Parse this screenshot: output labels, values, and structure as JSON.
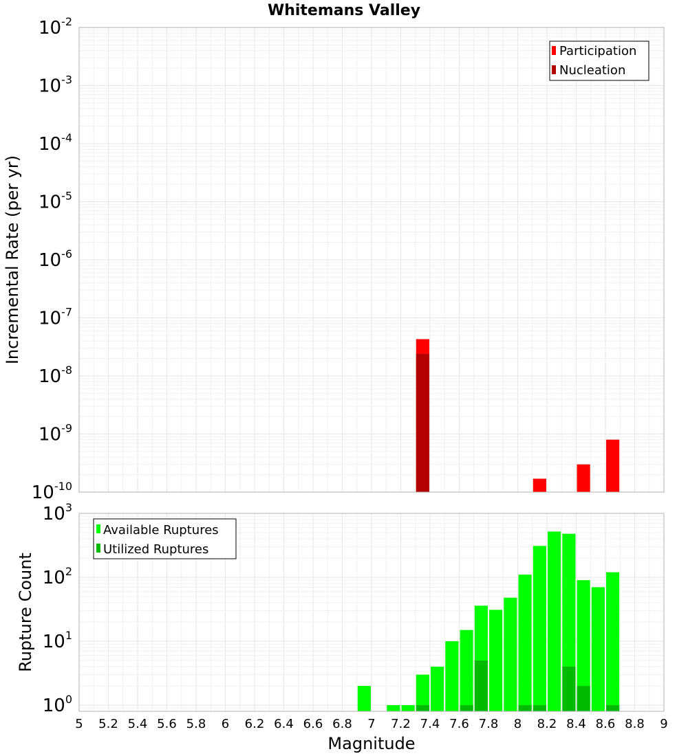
{
  "chart_data": [
    {
      "type": "bar",
      "title": "Whitemans Valley",
      "xlabel": "",
      "ylabel": "Incremental Rate (per yr)",
      "yscale": "log",
      "ylim": [
        1e-10,
        0.01
      ],
      "xlim": [
        5,
        9
      ],
      "grid": true,
      "legend_position": "top-right",
      "y_ticks": [
        {
          "base": "10",
          "exp": "-10"
        },
        {
          "base": "10",
          "exp": "-9"
        },
        {
          "base": "10",
          "exp": "-8"
        },
        {
          "base": "10",
          "exp": "-7"
        },
        {
          "base": "10",
          "exp": "-6"
        },
        {
          "base": "10",
          "exp": "-5"
        },
        {
          "base": "10",
          "exp": "-4"
        },
        {
          "base": "10",
          "exp": "-3"
        },
        {
          "base": "10",
          "exp": "-2"
        }
      ],
      "bar_width": 0.09,
      "series": [
        {
          "name": "Participation",
          "color": "#ff0000",
          "x": [
            7.35,
            8.15,
            8.45,
            8.65
          ],
          "values": [
            4.3e-08,
            1.7e-10,
            3e-10,
            8e-10
          ]
        },
        {
          "name": "Nucleation",
          "color": "#b30000",
          "x": [
            7.35
          ],
          "values": [
            2.4e-08
          ]
        }
      ]
    },
    {
      "type": "bar",
      "xlabel": "Magnitude",
      "ylabel": "Rupture Count",
      "yscale": "log",
      "ylim": [
        0.8,
        1000
      ],
      "xlim": [
        5,
        9
      ],
      "grid": true,
      "legend_position": "top-left",
      "x_ticks": [
        "5",
        "5.2",
        "5.4",
        "5.6",
        "5.8",
        "6",
        "6.2",
        "6.4",
        "6.6",
        "6.8",
        "7",
        "7.2",
        "7.4",
        "7.6",
        "7.8",
        "8",
        "8.2",
        "8.4",
        "8.6",
        "8.8",
        "9"
      ],
      "y_ticks": [
        {
          "base": "10",
          "exp": "0"
        },
        {
          "base": "10",
          "exp": "1"
        },
        {
          "base": "10",
          "exp": "2"
        },
        {
          "base": "10",
          "exp": "3"
        }
      ],
      "bar_width": 0.09,
      "series": [
        {
          "name": "Available Ruptures",
          "color": "#00ff00",
          "x": [
            6.95,
            7.15,
            7.25,
            7.35,
            7.45,
            7.55,
            7.65,
            7.75,
            7.85,
            7.95,
            8.05,
            8.15,
            8.25,
            8.35,
            8.45,
            8.55,
            8.65
          ],
          "values": [
            2,
            1,
            1,
            3,
            4,
            10,
            15,
            36,
            31,
            48,
            110,
            310,
            520,
            480,
            90,
            70,
            120
          ]
        },
        {
          "name": "Utilized Ruptures",
          "color": "#00bb00",
          "x": [
            7.35,
            7.65,
            7.75,
            8.05,
            8.15,
            8.35,
            8.45,
            8.65
          ],
          "values": [
            1,
            1,
            5,
            1,
            1,
            4,
            2,
            1
          ]
        }
      ]
    }
  ]
}
